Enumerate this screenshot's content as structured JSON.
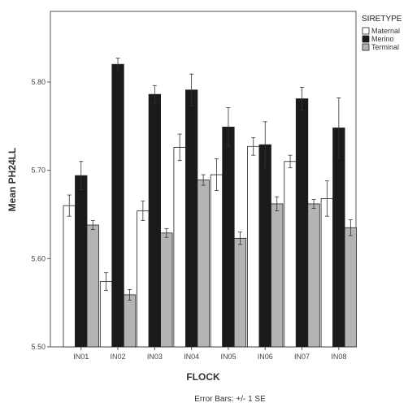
{
  "chart_data": {
    "type": "bar",
    "xlabel": "FLOCK",
    "ylabel": "Mean PH24LL",
    "footnote": "Error Bars: +/- 1 SE",
    "legend_title": "SIRETYPE",
    "legend_position": "top-right",
    "ylim": [
      5.5,
      5.88
    ],
    "yticks": [
      5.5,
      5.6,
      5.7,
      5.8
    ],
    "ytick_labels": [
      "5.50",
      "5.60",
      "5.70",
      "5.80"
    ],
    "grid": false,
    "categories": [
      "IN01",
      "IN02",
      "IN03",
      "IN04",
      "IN05",
      "IN06",
      "IN07",
      "IN08"
    ],
    "series": [
      {
        "name": "Maternal",
        "color": "#ffffff",
        "values": [
          5.66,
          5.574,
          5.654,
          5.726,
          5.695,
          5.727,
          5.71,
          5.668
        ],
        "errors": [
          0.012,
          0.01,
          0.011,
          0.015,
          0.018,
          0.01,
          0.007,
          0.02
        ]
      },
      {
        "name": "Merino",
        "color": "#1a1a1a",
        "values": [
          5.694,
          5.82,
          5.786,
          5.791,
          5.749,
          5.729,
          5.781,
          5.748
        ],
        "errors": [
          0.016,
          0.007,
          0.01,
          0.018,
          0.022,
          0.026,
          0.013,
          0.034
        ]
      },
      {
        "name": "Terminal",
        "color": "#b4b4b4",
        "values": [
          5.638,
          5.559,
          5.629,
          5.689,
          5.623,
          5.662,
          5.662,
          5.635
        ],
        "errors": [
          0.005,
          0.006,
          0.005,
          0.006,
          0.007,
          0.008,
          0.005,
          0.009
        ]
      }
    ]
  }
}
